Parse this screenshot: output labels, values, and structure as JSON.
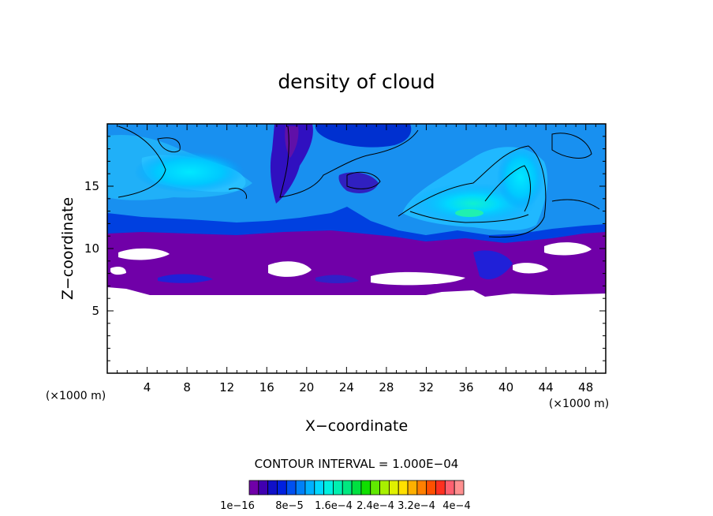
{
  "chart_data": {
    "type": "heatmap",
    "title": "density of cloud",
    "xlabel": "X−coordinate",
    "ylabel": "Z−coordinate",
    "x_unit_label": "(×1000 m)",
    "y_unit_label": "(×1000 m)",
    "xlim": [
      0,
      50
    ],
    "ylim": [
      0,
      20
    ],
    "x_ticks": [
      4,
      8,
      12,
      16,
      20,
      24,
      28,
      32,
      36,
      40,
      44,
      48
    ],
    "y_ticks": [
      5,
      10,
      15
    ],
    "contour_interval_label": "CONTOUR INTERVAL = 1.000E−04",
    "colorbar_labels": [
      "1e−16",
      "8e−5",
      "1.6e−4",
      "2.4e−4",
      "3.2e−4",
      "4e−4"
    ],
    "colorbar_colors": [
      "#7000a8",
      "#4000b0",
      "#1010c8",
      "#0020e0",
      "#0050f0",
      "#0080f8",
      "#00b0ff",
      "#00d8ff",
      "#00f0e0",
      "#00f0b0",
      "#00e880",
      "#00e040",
      "#10e000",
      "#60e800",
      "#a8f000",
      "#e0f000",
      "#ffe000",
      "#ffb000",
      "#ff8000",
      "#ff5000",
      "#ff3020",
      "#ff6070",
      "#ff9090"
    ],
    "cloud_base_km": 6.5,
    "cloud_layer_top_km": 11,
    "cloud_top_km": 20
  }
}
